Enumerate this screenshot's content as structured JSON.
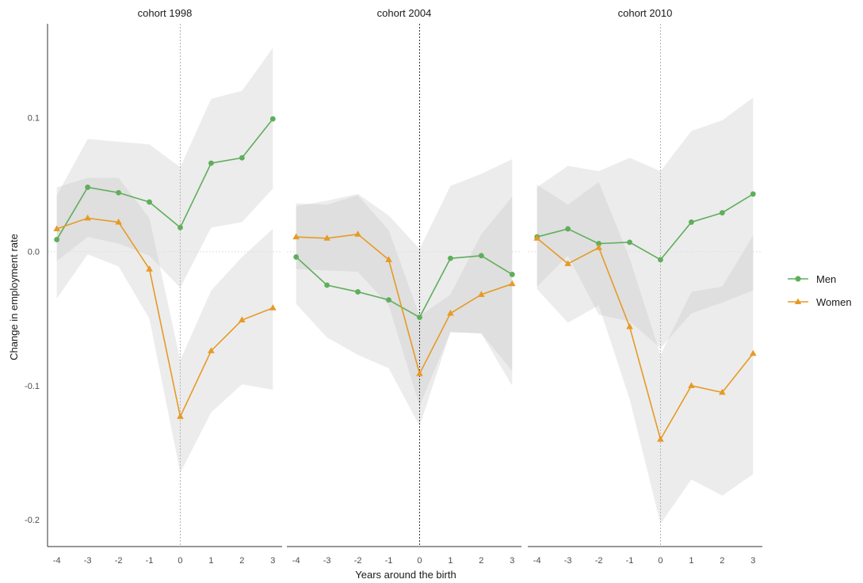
{
  "colors": {
    "men": "#5fae5c",
    "women": "#e69a25",
    "ribbon": "#bfbfbf",
    "axis": "#333333",
    "zero_line": "#e0e0e0",
    "vline_light": "#b3b3b3",
    "vline_dark": "#333333"
  },
  "chart_data": {
    "type": "line",
    "facet_variable": "cohort",
    "panels": [
      "cohort 1998",
      "cohort 2004",
      "cohort 2010"
    ],
    "xlabel": "Years around the birth",
    "ylabel": "Change in employment rate",
    "x": [
      -4,
      -3,
      -2,
      -1,
      0,
      1,
      2,
      3
    ],
    "x_tick_labels": [
      "-4",
      "-3",
      "-2",
      "-1",
      "0",
      "1",
      "2",
      "3"
    ],
    "y_ticks": [
      -0.2,
      -0.1,
      0.0,
      0.1
    ],
    "y_tick_labels": [
      "-0.2",
      "-0.1",
      "0.0",
      "0.1"
    ],
    "ylim": [
      -0.22,
      0.17
    ],
    "xlim": [
      -4.3,
      3.3
    ],
    "reference_lines": {
      "horizontal": 0,
      "vertical": 0
    },
    "legend": {
      "position": "right",
      "entries": [
        {
          "name": "Men",
          "marker": "circle"
        },
        {
          "name": "Women",
          "marker": "triangle"
        }
      ]
    },
    "series": [
      {
        "name": "Men",
        "marker": "circle",
        "panels": [
          {
            "values": [
              0.009,
              0.048,
              0.044,
              0.037,
              0.018,
              0.066,
              0.07,
              0.099
            ],
            "lower": [
              -0.007,
              0.011,
              0.006,
              -0.003,
              -0.027,
              0.018,
              0.022,
              0.047
            ],
            "upper": [
              0.042,
              0.084,
              0.082,
              0.08,
              0.063,
              0.114,
              0.12,
              0.152
            ]
          },
          {
            "values": [
              -0.004,
              -0.025,
              -0.03,
              -0.036,
              -0.049,
              -0.005,
              -0.003,
              -0.017
            ],
            "lower": [
              -0.039,
              -0.064,
              -0.077,
              -0.087,
              -0.13,
              -0.06,
              -0.061,
              -0.089
            ],
            "upper": [
              0.034,
              0.038,
              0.043,
              0.027,
              0.002,
              0.049,
              0.058,
              0.069
            ]
          },
          {
            "values": [
              0.011,
              0.017,
              0.006,
              0.007,
              -0.006,
              0.022,
              0.029,
              0.043
            ],
            "lower": [
              -0.026,
              -0.003,
              -0.047,
              -0.052,
              -0.072,
              -0.046,
              -0.038,
              -0.029
            ],
            "upper": [
              0.048,
              0.064,
              0.06,
              0.07,
              0.06,
              0.09,
              0.098,
              0.115
            ]
          }
        ]
      },
      {
        "name": "Women",
        "marker": "triangle",
        "panels": [
          {
            "values": [
              0.017,
              0.025,
              0.022,
              -0.013,
              -0.123,
              -0.074,
              -0.051,
              -0.042
            ],
            "lower": [
              -0.035,
              -0.002,
              -0.011,
              -0.05,
              -0.165,
              -0.12,
              -0.099,
              -0.103
            ],
            "upper": [
              0.048,
              0.055,
              0.055,
              0.025,
              -0.081,
              -0.029,
              -0.004,
              0.017
            ]
          },
          {
            "values": [
              0.011,
              0.01,
              0.013,
              -0.006,
              -0.091,
              -0.046,
              -0.032,
              -0.024
            ],
            "lower": [
              -0.013,
              -0.014,
              -0.015,
              -0.04,
              -0.115,
              -0.06,
              -0.061,
              -0.1
            ],
            "upper": [
              0.036,
              0.035,
              0.042,
              0.016,
              -0.048,
              -0.032,
              0.013,
              0.041
            ]
          },
          {
            "values": [
              0.01,
              -0.009,
              0.003,
              -0.056,
              -0.14,
              -0.1,
              -0.105,
              -0.076
            ],
            "lower": [
              -0.028,
              -0.053,
              -0.04,
              -0.11,
              -0.203,
              -0.17,
              -0.182,
              -0.166
            ],
            "upper": [
              0.05,
              0.035,
              0.052,
              -0.005,
              -0.077,
              -0.03,
              -0.026,
              0.012
            ]
          }
        ]
      }
    ]
  }
}
